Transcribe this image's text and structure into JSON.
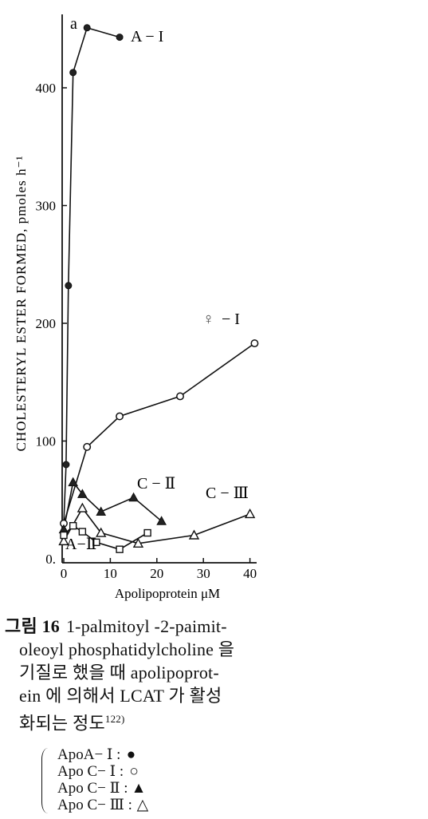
{
  "chart_data": {
    "type": "line",
    "panel_label": "a",
    "ylabel": "CHOLESTERYL ESTER FORMED, pmoles h⁻¹",
    "xlabel": "Apolipoprotein  μM",
    "xlim": [
      0,
      42
    ],
    "ylim": [
      0,
      460
    ],
    "xticks": [
      0,
      10,
      20,
      30,
      40
    ],
    "yticks": [
      0,
      100,
      200,
      300,
      400
    ],
    "ytick_labels": [
      "0.",
      "100",
      "200",
      "300",
      "400"
    ],
    "annotations": [
      {
        "text": "A − I",
        "series": "A-I"
      },
      {
        "text": "− I",
        "series": "C-I"
      },
      {
        "text": "C − Ⅱ",
        "series": "C-II"
      },
      {
        "text": "C − Ⅲ",
        "series": "C-III"
      },
      {
        "text": "A−Ⅱ",
        "series": "A-II"
      }
    ],
    "series": [
      {
        "name": "ApoA− Ⅰ",
        "marker": "filled-circle",
        "points": [
          [
            0,
            30
          ],
          [
            0.5,
            80
          ],
          [
            1,
            232
          ],
          [
            2,
            413
          ],
          [
            5,
            451
          ],
          [
            12,
            443
          ]
        ]
      },
      {
        "name": "Apo C− Ⅰ",
        "marker": "open-circle",
        "points": [
          [
            0,
            30
          ],
          [
            5,
            95
          ],
          [
            12,
            121
          ],
          [
            25,
            138
          ],
          [
            41,
            183
          ]
        ]
      },
      {
        "name": "Apo C− Ⅱ",
        "marker": "filled-triangle",
        "points": [
          [
            0,
            25
          ],
          [
            2,
            65
          ],
          [
            4,
            55
          ],
          [
            8,
            40
          ],
          [
            15,
            52
          ],
          [
            21,
            32
          ]
        ]
      },
      {
        "name": "Apo C− Ⅲ",
        "marker": "open-triangle",
        "points": [
          [
            0,
            15
          ],
          [
            4,
            43
          ],
          [
            8,
            22
          ],
          [
            16,
            13
          ],
          [
            28,
            20
          ],
          [
            40,
            38
          ]
        ]
      },
      {
        "name": "A-II",
        "marker": "open-square",
        "points": [
          [
            0,
            20
          ],
          [
            2,
            28
          ],
          [
            4,
            23
          ],
          [
            7,
            14
          ],
          [
            12,
            8
          ],
          [
            18,
            22
          ]
        ]
      }
    ]
  },
  "caption": {
    "figure_label": "그림 16",
    "line1": "1-palmitoyl -2-paimit-",
    "line2": "oleoyl phosphatidylcholine 을",
    "line3": "기질로 했을  때  apolipoprot-",
    "line4": "ein 에  의해서  LCAT 가  활성",
    "line5": "화되는 정도",
    "reference": "122)"
  },
  "legend": {
    "items": [
      {
        "label": "ApoA− Ⅰ :",
        "symbol": "●"
      },
      {
        "label": "Apo C− Ⅰ :",
        "symbol": "○"
      },
      {
        "label": "Apo C− Ⅱ :",
        "symbol": "▲"
      },
      {
        "label": "Apo C− Ⅲ :",
        "symbol": "△"
      }
    ]
  }
}
